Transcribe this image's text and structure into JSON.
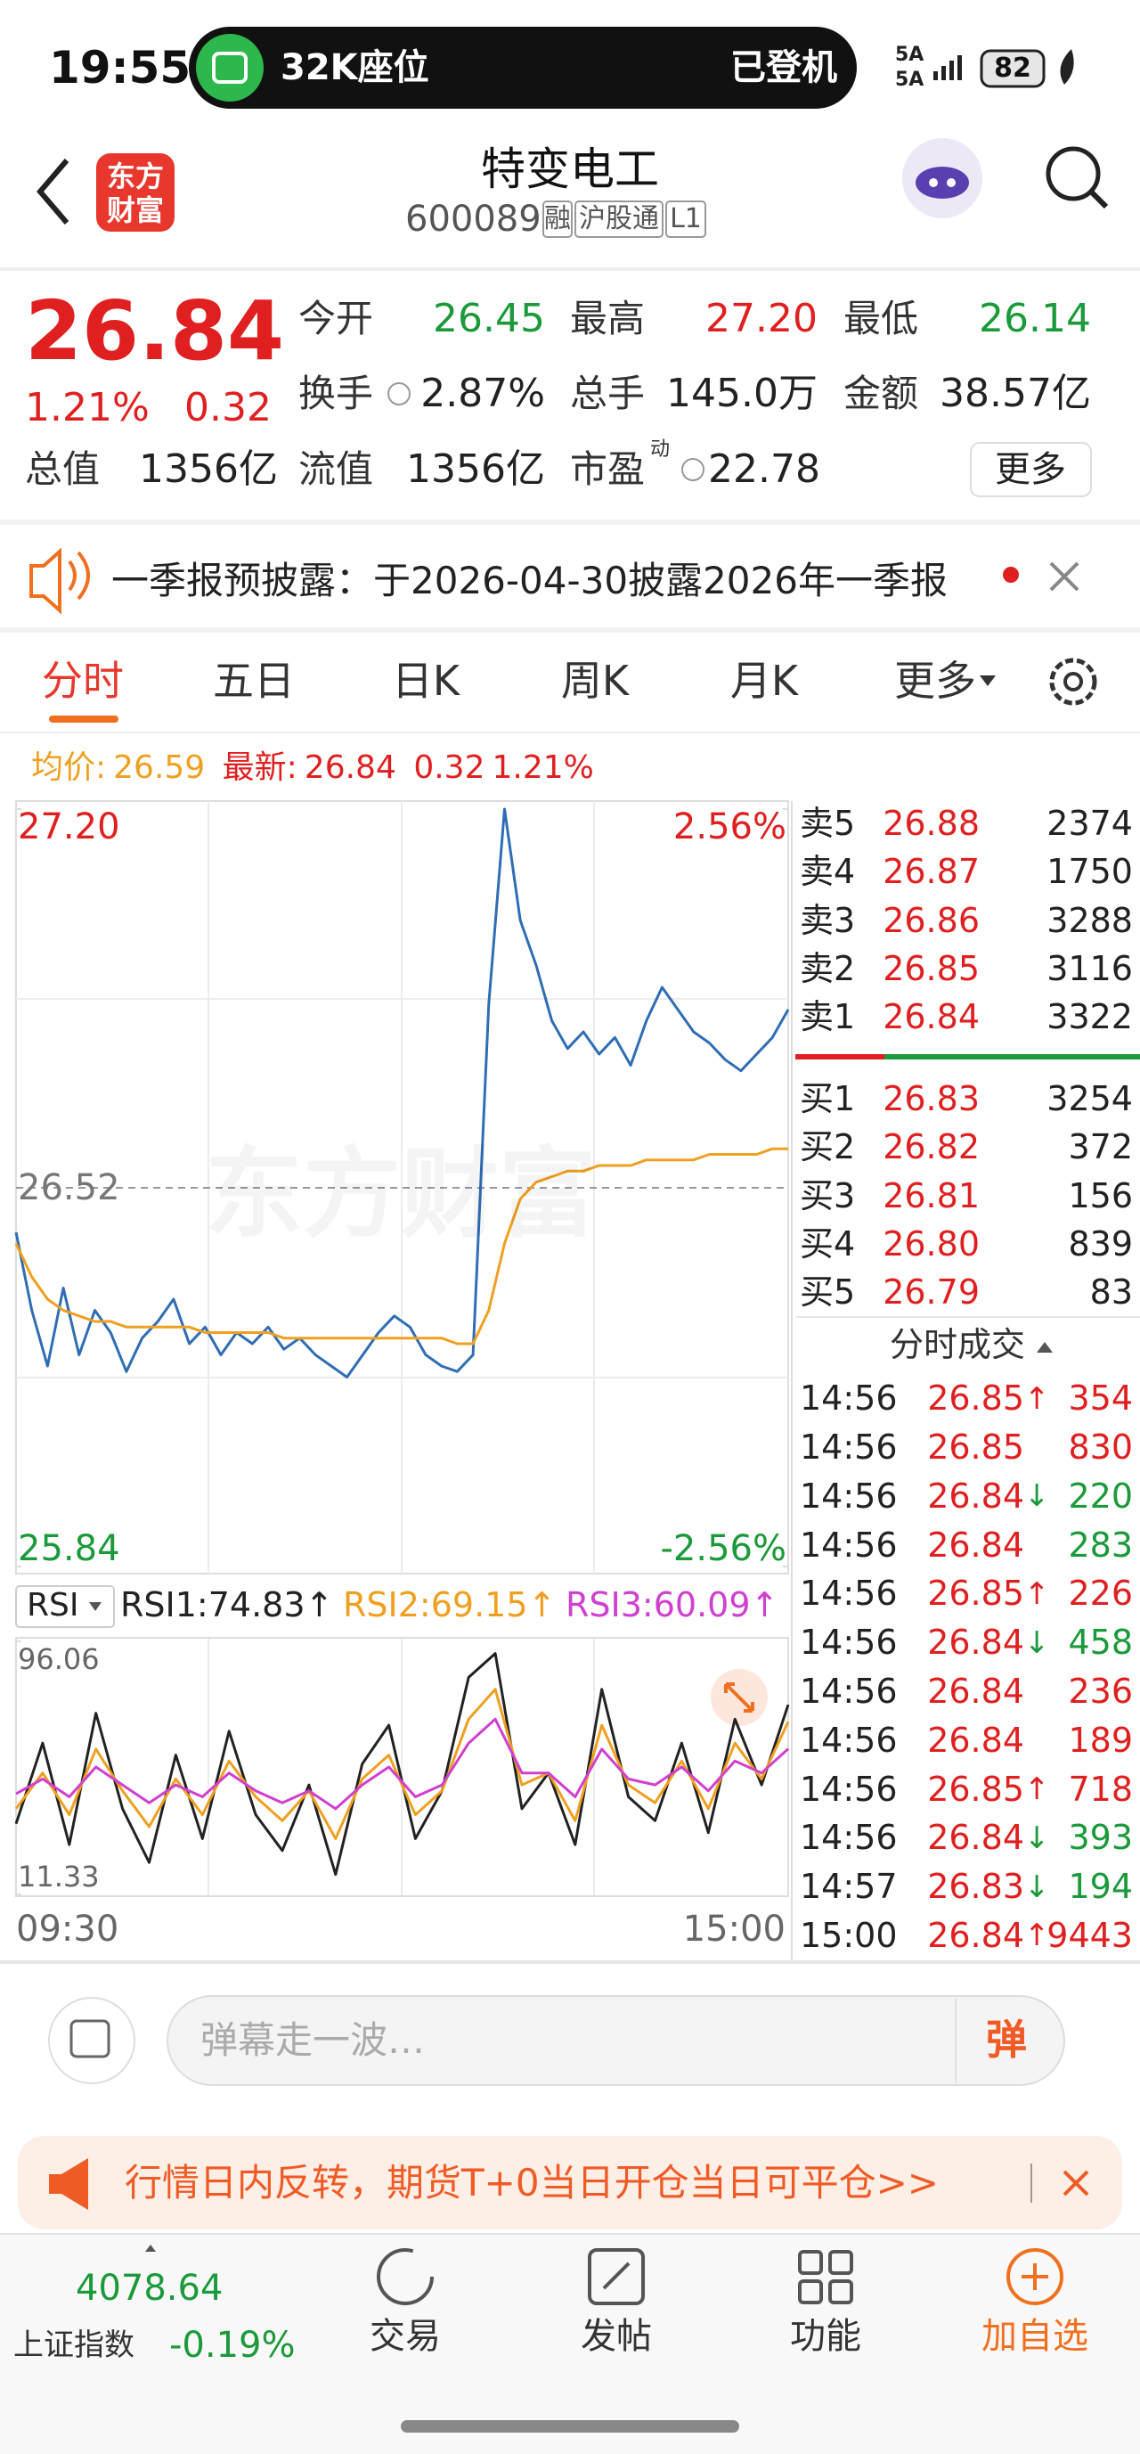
{
  "status": {
    "time": "19:55",
    "pill_text": "32K座位",
    "pill_status": "已登机",
    "network": [
      "5A",
      "5A"
    ],
    "battery": "82"
  },
  "header": {
    "logo": [
      "东方",
      "财富"
    ],
    "name": "特变电工",
    "code": "600089",
    "tags": [
      "融",
      "沪股通",
      "L1"
    ]
  },
  "quote": {
    "price": "26.84",
    "change_pct": "1.21%",
    "change": "0.32",
    "more": "更多",
    "fields": [
      {
        "label": "今开",
        "value": "26.45",
        "color": "#1a9a3a"
      },
      {
        "label": "最高",
        "value": "27.20",
        "color": "#e02020"
      },
      {
        "label": "最低",
        "value": "26.14",
        "color": "#1a9a3a"
      },
      {
        "label": "换手",
        "value": "2.87%",
        "color": "#222222"
      },
      {
        "label": "总手",
        "value": "145.0万",
        "color": "#222222"
      },
      {
        "label": "金额",
        "value": "38.57亿",
        "color": "#222222"
      },
      {
        "label": "总值",
        "value": "1356亿",
        "color": "#222222"
      },
      {
        "label": "流值",
        "value": "1356亿",
        "color": "#222222"
      },
      {
        "label": "市盈",
        "sup": "动",
        "value": "22.78",
        "color": "#222222"
      }
    ]
  },
  "notice": {
    "text": "一季报预披露：于2026-04-30披露2026年一季报"
  },
  "tabs": {
    "items": [
      "分时",
      "五日",
      "日K",
      "周K",
      "月K",
      "更多"
    ],
    "active": 0
  },
  "info": {
    "avg_label": "均价:",
    "avg": "26.59",
    "latest_label": "最新:",
    "latest": "26.84",
    "change": "0.32",
    "change_pct": "1.21%"
  },
  "chart_data": [
    {
      "type": "line",
      "watermark": "东方财富",
      "ylim": [
        25.84,
        27.2
      ],
      "yticks": [
        {
          "value": 27.2,
          "label": "27.20"
        },
        26.52,
        {
          "value": 25.84,
          "label": "25.84"
        }
      ],
      "y2lim": [
        -2.56,
        2.56
      ],
      "y2ticks": [
        {
          "value": 2.56,
          "label": "2.56%"
        },
        {
          "value": -2.56,
          "label": "-2.56%"
        }
      ],
      "series": [
        {
          "color": "#2f6db5",
          "values": [
            26.44,
            26.3,
            26.2,
            26.34,
            26.22,
            26.3,
            26.26,
            26.19,
            26.25,
            26.28,
            26.32,
            26.24,
            26.27,
            26.22,
            26.26,
            26.24,
            26.27,
            26.23,
            26.25,
            26.22,
            26.2,
            26.18,
            26.22,
            26.26,
            26.29,
            26.27,
            26.22,
            26.2,
            26.19,
            26.22,
            26.85,
            27.2,
            27.0,
            26.92,
            26.82,
            26.77,
            26.8,
            26.76,
            26.79,
            26.74,
            26.82,
            26.88,
            26.84,
            26.8,
            26.78,
            26.75,
            26.73,
            26.76,
            26.79,
            26.84
          ]
        },
        {
          "color": "#f0a020",
          "values": [
            26.42,
            26.36,
            26.32,
            26.3,
            26.29,
            26.28,
            26.28,
            26.27,
            26.27,
            26.27,
            26.27,
            26.27,
            26.26,
            26.26,
            26.26,
            26.26,
            26.26,
            26.25,
            26.25,
            26.25,
            26.25,
            26.25,
            26.25,
            26.25,
            26.25,
            26.25,
            26.25,
            26.25,
            26.24,
            26.24,
            26.3,
            26.42,
            26.5,
            26.53,
            26.54,
            26.55,
            26.55,
            26.56,
            26.56,
            26.56,
            26.57,
            26.57,
            26.57,
            26.57,
            26.58,
            26.58,
            26.58,
            26.58,
            26.59,
            26.59
          ]
        }
      ]
    },
    {
      "type": "line",
      "indicator": "RSI",
      "ylim": [
        11.33,
        96.06
      ],
      "yticks": [
        96.06,
        11.33
      ],
      "x_labels": [
        "09:30",
        "15:00"
      ],
      "series": [
        {
          "legend_label": "RSI1:74.83↑",
          "color": "#222222",
          "values": [
            35,
            62,
            28,
            72,
            40,
            22,
            58,
            30,
            66,
            38,
            26,
            48,
            18,
            55,
            68,
            30,
            46,
            84,
            92,
            40,
            52,
            28,
            80,
            44,
            36,
            62,
            32,
            70,
            48,
            74.83
          ]
        },
        {
          "legend_label": "RSI2:69.15↑",
          "color": "#f0a020",
          "values": [
            40,
            52,
            38,
            60,
            46,
            34,
            50,
            38,
            56,
            44,
            36,
            46,
            30,
            50,
            58,
            38,
            46,
            70,
            80,
            48,
            52,
            36,
            68,
            48,
            42,
            56,
            40,
            62,
            50,
            69.15
          ]
        },
        {
          "legend_label": "RSI3:60.09↑",
          "color": "#d040d0",
          "values": [
            45,
            50,
            44,
            54,
            48,
            42,
            48,
            44,
            52,
            46,
            42,
            46,
            40,
            48,
            54,
            44,
            48,
            62,
            70,
            52,
            52,
            44,
            60,
            50,
            48,
            54,
            46,
            56,
            52,
            60.09
          ]
        }
      ]
    }
  ],
  "order_book": {
    "asks": [
      {
        "label": "卖5",
        "price": "26.88",
        "volume": "2374"
      },
      {
        "label": "卖4",
        "price": "26.87",
        "volume": "1750"
      },
      {
        "label": "卖3",
        "price": "26.86",
        "volume": "3288"
      },
      {
        "label": "卖2",
        "price": "26.85",
        "volume": "3116"
      },
      {
        "label": "卖1",
        "price": "26.84",
        "volume": "3322"
      }
    ],
    "bids": [
      {
        "label": "买1",
        "price": "26.83",
        "volume": "3254"
      },
      {
        "label": "买2",
        "price": "26.82",
        "volume": "372"
      },
      {
        "label": "买3",
        "price": "26.81",
        "volume": "156"
      },
      {
        "label": "买4",
        "price": "26.80",
        "volume": "839"
      },
      {
        "label": "买5",
        "price": "26.79",
        "volume": "83"
      }
    ]
  },
  "trades": {
    "title": "分时成交",
    "rows": [
      {
        "time": "14:56",
        "price": "26.85",
        "arrow": "↑",
        "volume": "354",
        "color": "#e02020"
      },
      {
        "time": "14:56",
        "price": "26.85",
        "volume": "830",
        "color": "#e02020"
      },
      {
        "time": "14:56",
        "price": "26.84",
        "arrow": "↓",
        "volume": "220",
        "color": "#1a9a3a"
      },
      {
        "time": "14:56",
        "price": "26.84",
        "volume": "283",
        "color": "#1a9a3a"
      },
      {
        "time": "14:56",
        "price": "26.85",
        "arrow": "↑",
        "volume": "226",
        "color": "#e02020"
      },
      {
        "time": "14:56",
        "price": "26.84",
        "arrow": "↓",
        "volume": "458",
        "color": "#1a9a3a"
      },
      {
        "time": "14:56",
        "price": "26.84",
        "volume": "236",
        "color": "#e02020"
      },
      {
        "time": "14:56",
        "price": "26.84",
        "volume": "189",
        "color": "#e02020"
      },
      {
        "time": "14:56",
        "price": "26.85",
        "arrow": "↑",
        "volume": "718",
        "color": "#e02020"
      },
      {
        "time": "14:56",
        "price": "26.84",
        "arrow": "↓",
        "volume": "393",
        "color": "#1a9a3a"
      },
      {
        "time": "14:57",
        "price": "26.83",
        "arrow": "↓",
        "volume": "194",
        "color": "#1a9a3a"
      },
      {
        "time": "15:00",
        "price": "26.84",
        "arrow": "↑",
        "volume": "9443",
        "color": "#e02020"
      }
    ]
  },
  "bottom": {
    "danmu_placeholder": "弹幕走一波…",
    "danmu_button": "弹",
    "banner": "行情日内反转，期货T+0当日开仓当日可平仓>>",
    "index": {
      "value": "4078.64",
      "name": "上证指数",
      "change_pct": "-0.19%"
    },
    "nav": [
      "交易",
      "发帖",
      "功能",
      "加自选"
    ]
  }
}
